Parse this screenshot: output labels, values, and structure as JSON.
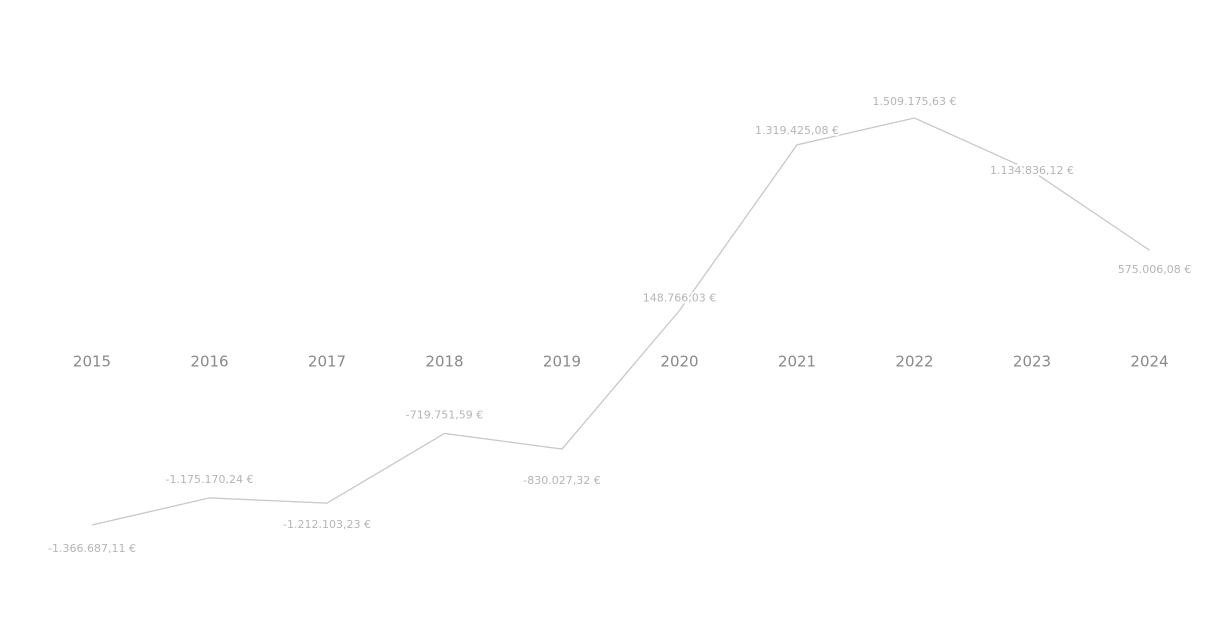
{
  "chart_data": {
    "type": "line",
    "categories": [
      "2015",
      "2016",
      "2017",
      "2018",
      "2019",
      "2020",
      "2021",
      "2022",
      "2023",
      "2024"
    ],
    "series": [
      {
        "color": "#c8c8c8",
        "values": [
          -1366687.11,
          -1175170.24,
          -1212103.23,
          -719751.59,
          -830027.32,
          148766.03,
          1319425.08,
          1509175.63,
          1134836.12,
          575006.08
        ],
        "value_labels": [
          "-1.366.687,11 €",
          "-1.175.170,24 €",
          "-1.212.103,23 €",
          "-719.751,59 €",
          "-830.027,32 €",
          "148.766,03 €",
          "1.319.425,08 €",
          "1.509.175,63 €",
          "1.134.836,12 €",
          "575.006,08 €"
        ]
      }
    ]
  }
}
